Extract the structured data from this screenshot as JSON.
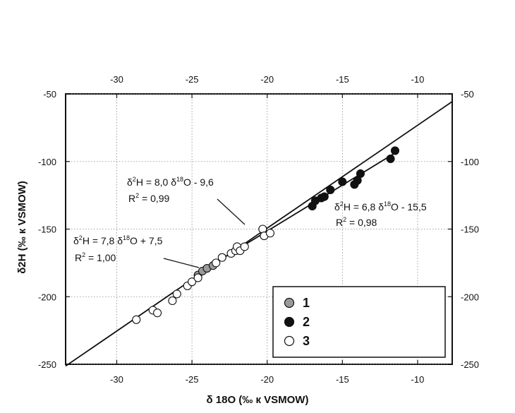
{
  "chart_data": {
    "type": "scatter",
    "xlabel": "δ 18O (‰ к  VSMOW)",
    "ylabel": "δ2H (‰  к  VSMOW)",
    "xlim": [
      -33.4,
      -7.7
    ],
    "ylim": [
      -250,
      -50
    ],
    "x_ticks": [
      -30,
      -25,
      -20,
      -15,
      -10
    ],
    "x_tick_labels": [
      "-30",
      "-25",
      "-20",
      "-15",
      "-10"
    ],
    "y_ticks": [
      -250,
      -200,
      -150,
      -100,
      -50
    ],
    "y_tick_labels": [
      "-250",
      "-200",
      "-150",
      "-100",
      "-50"
    ],
    "grid": true,
    "legend_position": "bottom-right",
    "series": [
      {
        "name": "1",
        "marker_color": "#9a9a9a",
        "x": [
          -24.6,
          -24.3,
          -24.0,
          -23.6
        ],
        "y": [
          -184,
          -181,
          -179,
          -177
        ]
      },
      {
        "name": "2",
        "marker_color": "#111111",
        "x": [
          -17.0,
          -16.8,
          -16.4,
          -16.2,
          -15.8,
          -15.0,
          -14.2,
          -14.0,
          -13.8,
          -11.8,
          -11.5
        ],
        "y": [
          -133,
          -129,
          -127,
          -126,
          -121,
          -115,
          -117,
          -114,
          -109,
          -98,
          -92
        ]
      },
      {
        "name": "3",
        "marker_color": "#ffffff",
        "x": [
          -28.7,
          -27.6,
          -27.3,
          -26.3,
          -26.0,
          -25.3,
          -25.0,
          -24.6,
          -23.4,
          -23.0,
          -22.4,
          -22.1,
          -22.0,
          -21.8,
          -21.5,
          -20.3,
          -20.2,
          -19.8
        ],
        "y": [
          -217,
          -210,
          -212,
          -203,
          -198,
          -192,
          -189,
          -186,
          -175,
          -171,
          -168,
          -166,
          -163,
          -166,
          -163,
          -150,
          -155,
          -153
        ]
      }
    ],
    "lines": [
      {
        "x": [
          -33.4,
          -7.7
        ],
        "y": [
          -251.3,
          -55.7
        ]
      },
      {
        "x": [
          -24.7,
          -11.5
        ],
        "y": [
          -183.4,
          -93.7
        ]
      }
    ],
    "annotations": [
      {
        "eq": {
          "a": "δ",
          "sup1": "2",
          "b": "H = 8,0 δ",
          "sup2": "18",
          "c": "O - 9,6"
        },
        "r2": {
          "a": "R",
          "sup": "2",
          "b": " = 0,99"
        }
      },
      {
        "eq": {
          "a": "δ",
          "sup1": "2",
          "b": "H = 6,8 δ",
          "sup2": "18",
          "c": "O - 15,5"
        },
        "r2": {
          "a": "R",
          "sup": "2",
          "b": " = 0,98"
        }
      },
      {
        "eq": {
          "a": "δ",
          "sup1": "2",
          "b": "H = 7,8 δ",
          "sup2": "18",
          "c": "O + 7,5"
        },
        "r2": {
          "a": "R",
          "sup": "2",
          "b": " = 1,00"
        }
      }
    ]
  }
}
